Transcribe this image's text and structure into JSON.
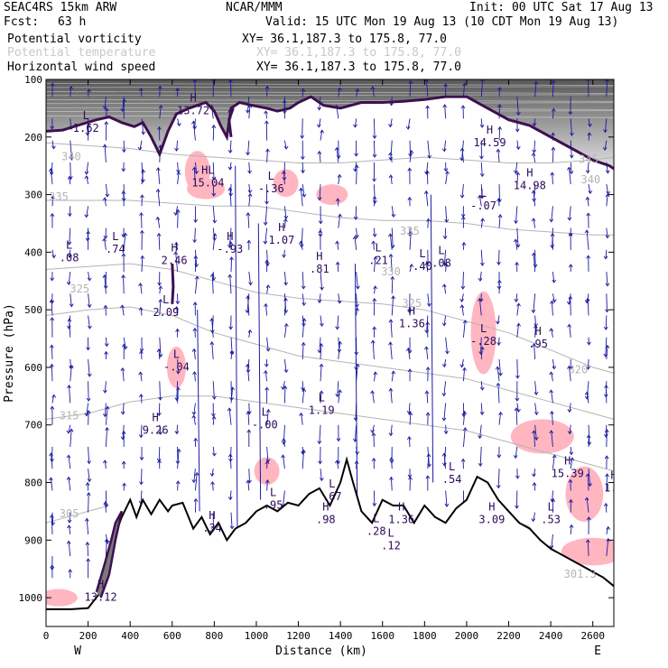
{
  "header": {
    "model": "SEAC4RS 15km ARW",
    "org": "NCAR/MMM",
    "init": "Init: 00 UTC Sat 17 Aug 13",
    "fcst_label": "Fcst:",
    "fcst_value": "63 h",
    "valid": "Valid: 15 UTC Mon 19 Aug 13 (10 CDT Mon 19 Aug 13)",
    "fields": [
      {
        "name": "Potential vorticity",
        "xy": "XY=  36.1,187.3 to 175.8, 77.0",
        "color": "#000000"
      },
      {
        "name": "Potential temperature",
        "xy": "XY=  36.1,187.3 to 175.8, 77.0",
        "color": "#c8c8c8"
      },
      {
        "name": "Horizontal wind speed",
        "xy": "XY=  36.1,187.3 to 175.8, 77.0",
        "color": "#000000"
      }
    ]
  },
  "colors": {
    "pv_contour": "#3d1050",
    "theta": "#b4b4b4",
    "wind": "#1a1aa0",
    "pink": "#ffb6c1",
    "terrain": "#000000",
    "extrema": "#2b0a5a"
  },
  "chart_data": {
    "type": "cross-section",
    "xlabel": "Distance (km)",
    "ylabel": "Pressure (hPa)",
    "xlim": [
      0,
      2700
    ],
    "ylim": [
      1050,
      100
    ],
    "x_ticks": [
      0,
      200,
      400,
      600,
      800,
      1000,
      1200,
      1400,
      1600,
      1800,
      2000,
      2200,
      2400,
      2600
    ],
    "y_ticks": [
      100,
      200,
      300,
      400,
      500,
      600,
      700,
      800,
      900,
      1000
    ],
    "endpoints": {
      "left": "W",
      "right": "E"
    },
    "terrain": [
      [
        0,
        1020
      ],
      [
        120,
        1020
      ],
      [
        200,
        1018
      ],
      [
        260,
        990
      ],
      [
        300,
        940
      ],
      [
        330,
        890
      ],
      [
        360,
        860
      ],
      [
        400,
        830
      ],
      [
        430,
        860
      ],
      [
        460,
        830
      ],
      [
        500,
        855
      ],
      [
        540,
        830
      ],
      [
        580,
        850
      ],
      [
        600,
        840
      ],
      [
        650,
        835
      ],
      [
        700,
        880
      ],
      [
        740,
        860
      ],
      [
        780,
        890
      ],
      [
        820,
        870
      ],
      [
        860,
        900
      ],
      [
        900,
        880
      ],
      [
        950,
        870
      ],
      [
        1000,
        850
      ],
      [
        1050,
        840
      ],
      [
        1100,
        850
      ],
      [
        1150,
        835
      ],
      [
        1200,
        840
      ],
      [
        1250,
        820
      ],
      [
        1300,
        810
      ],
      [
        1350,
        840
      ],
      [
        1400,
        800
      ],
      [
        1430,
        760
      ],
      [
        1460,
        800
      ],
      [
        1500,
        850
      ],
      [
        1550,
        870
      ],
      [
        1600,
        830
      ],
      [
        1650,
        840
      ],
      [
        1700,
        840
      ],
      [
        1750,
        870
      ],
      [
        1800,
        840
      ],
      [
        1850,
        860
      ],
      [
        1900,
        870
      ],
      [
        1950,
        845
      ],
      [
        2000,
        830
      ],
      [
        2050,
        790
      ],
      [
        2100,
        800
      ],
      [
        2150,
        830
      ],
      [
        2200,
        850
      ],
      [
        2250,
        870
      ],
      [
        2300,
        880
      ],
      [
        2350,
        900
      ],
      [
        2400,
        915
      ],
      [
        2450,
        925
      ],
      [
        2500,
        935
      ],
      [
        2550,
        945
      ],
      [
        2600,
        955
      ],
      [
        2650,
        965
      ],
      [
        2700,
        980
      ]
    ],
    "tropopause_pv": [
      [
        0,
        190
      ],
      [
        80,
        188
      ],
      [
        150,
        180
      ],
      [
        240,
        170
      ],
      [
        300,
        165
      ],
      [
        360,
        175
      ],
      [
        420,
        182
      ],
      [
        460,
        175
      ],
      [
        500,
        200
      ],
      [
        540,
        230
      ],
      [
        580,
        190
      ],
      [
        620,
        160
      ],
      [
        680,
        150
      ],
      [
        720,
        145
      ],
      [
        760,
        140
      ],
      [
        800,
        155
      ],
      [
        830,
        180
      ],
      [
        860,
        200
      ],
      [
        880,
        150
      ],
      [
        920,
        140
      ],
      [
        980,
        145
      ],
      [
        1050,
        150
      ],
      [
        1100,
        155
      ],
      [
        1160,
        150
      ],
      [
        1200,
        140
      ],
      [
        1260,
        130
      ],
      [
        1320,
        145
      ],
      [
        1400,
        150
      ],
      [
        1500,
        140
      ],
      [
        1600,
        140
      ],
      [
        1700,
        138
      ],
      [
        1800,
        135
      ],
      [
        1900,
        130
      ],
      [
        2000,
        130
      ],
      [
        2100,
        150
      ],
      [
        2200,
        170
      ],
      [
        2300,
        180
      ],
      [
        2400,
        200
      ],
      [
        2500,
        220
      ],
      [
        2600,
        240
      ],
      [
        2680,
        250
      ],
      [
        2700,
        255
      ]
    ],
    "theta_isentropes": [
      {
        "label": "340",
        "points": [
          [
            0,
            210
          ],
          [
            200,
            215
          ],
          [
            400,
            220
          ],
          [
            600,
            230
          ],
          [
            800,
            235
          ],
          [
            1000,
            240
          ],
          [
            1200,
            245
          ],
          [
            1400,
            245
          ],
          [
            1600,
            240
          ],
          [
            1800,
            235
          ],
          [
            2000,
            240
          ],
          [
            2200,
            245
          ],
          [
            2400,
            245
          ],
          [
            2600,
            240
          ],
          [
            2700,
            235
          ]
        ]
      },
      {
        "label": "335",
        "points": [
          [
            0,
            310
          ],
          [
            200,
            310
          ],
          [
            400,
            310
          ],
          [
            600,
            315
          ],
          [
            800,
            320
          ],
          [
            1000,
            320
          ],
          [
            1200,
            330
          ],
          [
            1400,
            340
          ],
          [
            1600,
            345
          ],
          [
            1800,
            345
          ],
          [
            2000,
            350
          ],
          [
            2200,
            360
          ],
          [
            2400,
            365
          ],
          [
            2600,
            370
          ],
          [
            2700,
            370
          ]
        ]
      },
      {
        "label": "325",
        "points": [
          [
            0,
            430
          ],
          [
            200,
            425
          ],
          [
            400,
            420
          ],
          [
            600,
            430
          ],
          [
            800,
            450
          ],
          [
            1000,
            470
          ],
          [
            1200,
            480
          ],
          [
            1400,
            485
          ],
          [
            1600,
            490
          ],
          [
            1800,
            500
          ],
          [
            2000,
            520
          ],
          [
            2200,
            540
          ],
          [
            2400,
            570
          ],
          [
            2600,
            600
          ],
          [
            2700,
            610
          ]
        ]
      },
      {
        "label": "320",
        "points": [
          [
            0,
            510
          ],
          [
            200,
            500
          ],
          [
            400,
            495
          ],
          [
            600,
            510
          ],
          [
            800,
            540
          ],
          [
            1000,
            560
          ],
          [
            1200,
            580
          ],
          [
            1400,
            590
          ],
          [
            1600,
            600
          ],
          [
            1800,
            610
          ],
          [
            2000,
            620
          ],
          [
            2200,
            640
          ],
          [
            2400,
            660
          ],
          [
            2600,
            680
          ],
          [
            2700,
            690
          ]
        ]
      },
      {
        "label": "315",
        "points": [
          [
            0,
            690
          ],
          [
            200,
            680
          ],
          [
            400,
            660
          ],
          [
            600,
            650
          ],
          [
            800,
            650
          ],
          [
            1000,
            660
          ],
          [
            1200,
            670
          ],
          [
            1400,
            680
          ],
          [
            1600,
            690
          ],
          [
            1800,
            700
          ],
          [
            2000,
            710
          ],
          [
            2200,
            730
          ],
          [
            2400,
            750
          ],
          [
            2600,
            770
          ],
          [
            2700,
            780
          ]
        ]
      },
      {
        "label": "305",
        "points": [
          [
            0,
            870
          ],
          [
            100,
            860
          ],
          [
            200,
            850
          ],
          [
            300,
            840
          ]
        ]
      }
    ],
    "theta_labels": [
      {
        "text": "340",
        "x": 120,
        "p": 240
      },
      {
        "text": "335",
        "x": 60,
        "p": 310
      },
      {
        "text": "335",
        "x": 1730,
        "p": 370
      },
      {
        "text": "325",
        "x": 160,
        "p": 470
      },
      {
        "text": "320",
        "x": 2530,
        "p": 610
      },
      {
        "text": "315",
        "x": 110,
        "p": 690
      },
      {
        "text": "305",
        "x": 110,
        "p": 860
      },
      {
        "text": "301.3",
        "x": 2540,
        "p": 965
      },
      {
        "text": "330",
        "x": 1640,
        "p": 440
      },
      {
        "text": "325",
        "x": 1740,
        "p": 495
      },
      {
        "text": "340",
        "x": 2590,
        "p": 280
      },
      {
        "text": "345",
        "x": 2580,
        "p": 245
      }
    ],
    "extrema": [
      {
        "type": "L",
        "value": "1.62",
        "x": 190,
        "p": 175
      },
      {
        "type": "H",
        "value": "13.72",
        "x": 700,
        "p": 145
      },
      {
        "type": "H",
        "value": "14.59",
        "x": 2110,
        "p": 200
      },
      {
        "type": "H",
        "value": "14.98",
        "x": 2300,
        "p": 275
      },
      {
        "type": "HL",
        "value": "15.04",
        "x": 770,
        "p": 270
      },
      {
        "type": "L",
        "value": "-.36",
        "x": 1070,
        "p": 280
      },
      {
        "type": "L",
        "value": "-.07",
        "x": 2080,
        "p": 310
      },
      {
        "type": "H",
        "value": "1.07",
        "x": 1120,
        "p": 370
      },
      {
        "type": "L",
        "value": ".74",
        "x": 330,
        "p": 385
      },
      {
        "type": "H",
        "value": "-.93",
        "x": 875,
        "p": 385
      },
      {
        "type": "L",
        "value": ".08",
        "x": 110,
        "p": 400
      },
      {
        "type": "H",
        "value": "2.46",
        "x": 610,
        "p": 405
      },
      {
        "type": "H",
        "value": ".81",
        "x": 1300,
        "p": 420
      },
      {
        "type": "L",
        "value": ".21",
        "x": 1580,
        "p": 405
      },
      {
        "type": "L",
        "value": ".40",
        "x": 1790,
        "p": 415
      },
      {
        "type": "L",
        "value": ".08",
        "x": 1880,
        "p": 410
      },
      {
        "type": "L",
        "value": "2.09",
        "x": 570,
        "p": 495
      },
      {
        "type": "H",
        "value": "1.36",
        "x": 1740,
        "p": 515
      },
      {
        "type": "L",
        "value": "-.28",
        "x": 2080,
        "p": 545
      },
      {
        "type": "H",
        "value": ".95",
        "x": 2340,
        "p": 550
      },
      {
        "type": "L",
        "value": "-.04",
        "x": 620,
        "p": 590
      },
      {
        "type": "L",
        "value": "1.19",
        "x": 1310,
        "p": 665
      },
      {
        "type": "H",
        "value": "9.26",
        "x": 520,
        "p": 700
      },
      {
        "type": "L",
        "value": "-.00",
        "x": 1040,
        "p": 690
      },
      {
        "type": "H",
        "value": "15.39",
        "x": 2480,
        "p": 775
      },
      {
        "type": "H",
        "value": "1.1",
        "x": 2700,
        "p": 800
      },
      {
        "type": "L",
        "value": ".54",
        "x": 1930,
        "p": 785
      },
      {
        "type": "L",
        "value": ".67",
        "x": 1360,
        "p": 815
      },
      {
        "type": "L",
        "value": ".95",
        "x": 1080,
        "p": 830
      },
      {
        "type": "H",
        "value": ".98",
        "x": 1330,
        "p": 855
      },
      {
        "type": "H",
        "value": "3.09",
        "x": 2120,
        "p": 855
      },
      {
        "type": "L",
        "value": ".53",
        "x": 2400,
        "p": 855
      },
      {
        "type": "H",
        "value": "1.36",
        "x": 1690,
        "p": 855
      },
      {
        "type": "H",
        "value": ".34",
        "x": 790,
        "p": 870
      },
      {
        "type": "L",
        "value": ".28",
        "x": 1570,
        "p": 875
      },
      {
        "type": "L",
        "value": ".12",
        "x": 1640,
        "p": 900
      },
      {
        "type": "H",
        "value": "13.12",
        "x": 260,
        "p": 990
      }
    ],
    "pink_regions": [
      {
        "x": 620,
        "p": 600,
        "w": 30,
        "h": 60
      },
      {
        "x": 760,
        "p": 290,
        "w": 60,
        "h": 30
      },
      {
        "x": 720,
        "p": 260,
        "w": 40,
        "h": 60
      },
      {
        "x": 1140,
        "p": 280,
        "w": 40,
        "h": 40
      },
      {
        "x": 1360,
        "p": 300,
        "w": 50,
        "h": 30
      },
      {
        "x": 2080,
        "p": 540,
        "w": 40,
        "h": 120
      },
      {
        "x": 2360,
        "p": 720,
        "w": 100,
        "h": 50
      },
      {
        "x": 2560,
        "p": 820,
        "w": 60,
        "h": 80
      },
      {
        "x": 2600,
        "p": 920,
        "w": 100,
        "h": 40
      },
      {
        "x": 60,
        "p": 1000,
        "w": 60,
        "h": 25
      },
      {
        "x": 2270,
        "p": 890,
        "w": 30,
        "h": 30
      },
      {
        "x": 1050,
        "p": 780,
        "w": 40,
        "h": 40
      }
    ]
  }
}
